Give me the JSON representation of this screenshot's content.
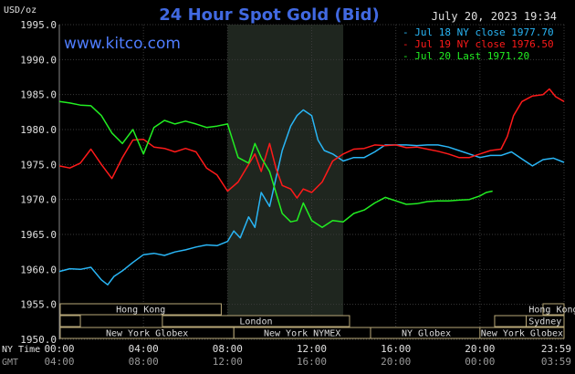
{
  "chart_data": {
    "type": "line",
    "title": "24 Hour Spot Gold (Bid)",
    "ylabel": "USD/oz",
    "timestamp": "July 20, 2023 19:34",
    "watermark": "www.kitco.com",
    "ylim": [
      1950,
      1995
    ],
    "yticks": [
      "1995.0",
      "1990.0",
      "1985.0",
      "1980.0",
      "1975.0",
      "1970.0",
      "1965.0",
      "1960.0",
      "1955.0",
      "1950.0"
    ],
    "ytick_values": [
      1995,
      1990,
      1985,
      1980,
      1975,
      1970,
      1965,
      1960,
      1955,
      1950
    ],
    "xlim": [
      0,
      24
    ],
    "ny_time_label": "NY Time",
    "gmt_label": "GMT",
    "xticks_ny": [
      "00:00",
      "04:00",
      "08:00",
      "12:00",
      "16:00",
      "20:00",
      "23:59"
    ],
    "xticks_gmt": [
      "04:00",
      "08:00",
      "12:00",
      "16:00",
      "20:00",
      "00:00",
      "03:59"
    ],
    "xtick_hours": [
      0,
      4,
      8,
      12,
      16,
      20,
      24
    ],
    "shade_hours": [
      8,
      13.5
    ],
    "legend_position": "top-right",
    "series": [
      {
        "name": "Jul 18 NY close 1977.70",
        "color": "#29b6f6",
        "x": [
          0,
          0.5,
          1,
          1.5,
          2,
          2.3,
          2.6,
          3,
          3.5,
          4,
          4.5,
          5,
          5.5,
          6,
          6.5,
          7,
          7.5,
          8,
          8.3,
          8.6,
          9,
          9.3,
          9.6,
          10,
          10.3,
          10.6,
          11,
          11.3,
          11.6,
          12,
          12.3,
          12.6,
          13,
          13.5,
          14,
          14.5,
          15,
          15.5,
          16,
          16.5,
          17,
          17.5,
          18,
          18.5,
          19,
          19.5,
          20,
          20.5,
          21,
          21.5,
          22,
          22.5,
          23,
          23.5,
          24
        ],
        "values": [
          1959.7,
          1960.1,
          1960.0,
          1960.3,
          1958.5,
          1957.8,
          1959.0,
          1959.8,
          1961.0,
          1962.1,
          1962.3,
          1962.0,
          1962.5,
          1962.8,
          1963.2,
          1963.5,
          1963.4,
          1964.0,
          1965.5,
          1964.5,
          1967.5,
          1966.0,
          1971.0,
          1969.0,
          1973.0,
          1977.0,
          1980.5,
          1982.0,
          1982.8,
          1982.0,
          1978.5,
          1977.0,
          1976.5,
          1975.5,
          1976.0,
          1976.0,
          1976.8,
          1977.8,
          1977.8,
          1977.8,
          1977.7,
          1977.8,
          1977.8,
          1977.5,
          1977.0,
          1976.5,
          1976.0,
          1976.3,
          1976.3,
          1976.8,
          1975.8,
          1974.8,
          1975.7,
          1975.9,
          1975.3
        ]
      },
      {
        "name": "Jul 19 NY close 1976.50",
        "color": "#ff1a1a",
        "x": [
          0,
          0.5,
          1,
          1.5,
          2,
          2.5,
          3,
          3.5,
          4,
          4.5,
          5,
          5.5,
          6,
          6.5,
          7,
          7.5,
          8,
          8.5,
          9,
          9.3,
          9.6,
          10,
          10.3,
          10.6,
          11,
          11.3,
          11.6,
          12,
          12.5,
          13,
          13.5,
          14,
          14.5,
          15,
          15.5,
          16,
          16.5,
          17,
          17.5,
          18,
          18.5,
          19,
          19.5,
          20,
          20.5,
          21,
          21.3,
          21.6,
          22,
          22.5,
          23,
          23.3,
          23.6,
          24
        ],
        "values": [
          1974.8,
          1974.5,
          1975.2,
          1977.2,
          1975.0,
          1973.0,
          1976.0,
          1978.5,
          1978.6,
          1977.5,
          1977.3,
          1976.8,
          1977.3,
          1976.8,
          1974.5,
          1973.5,
          1971.2,
          1972.5,
          1975.0,
          1976.5,
          1974.0,
          1978.0,
          1974.5,
          1972.0,
          1971.5,
          1970.2,
          1971.5,
          1971.0,
          1972.5,
          1975.5,
          1976.5,
          1977.2,
          1977.3,
          1977.8,
          1977.7,
          1977.8,
          1977.4,
          1977.5,
          1977.2,
          1976.9,
          1976.5,
          1976.0,
          1976.0,
          1976.5,
          1977.0,
          1977.2,
          1979.0,
          1982.0,
          1984.0,
          1984.8,
          1985.0,
          1985.8,
          1984.7,
          1984.0
        ]
      },
      {
        "name": "Jul 20 Last 1971.20",
        "color": "#22ee22",
        "x": [
          0,
          0.5,
          1,
          1.5,
          2,
          2.5,
          3,
          3.5,
          4,
          4.5,
          5,
          5.5,
          6,
          6.5,
          7,
          7.5,
          8,
          8.5,
          9,
          9.3,
          9.6,
          10,
          10.3,
          10.6,
          11,
          11.3,
          11.6,
          12,
          12.5,
          13,
          13.5,
          14,
          14.5,
          15,
          15.5,
          16,
          16.5,
          17,
          17.5,
          18,
          18.5,
          19,
          19.5,
          20,
          20.3,
          20.6
        ],
        "values": [
          1984.0,
          1983.8,
          1983.5,
          1983.4,
          1982.0,
          1979.5,
          1978.0,
          1980.0,
          1976.5,
          1980.3,
          1981.3,
          1980.8,
          1981.2,
          1980.8,
          1980.3,
          1980.5,
          1980.8,
          1976.0,
          1975.2,
          1978.0,
          1976.0,
          1974.0,
          1971.0,
          1968.0,
          1966.8,
          1967.0,
          1969.5,
          1967.0,
          1966.0,
          1967.0,
          1966.8,
          1968.0,
          1968.5,
          1969.5,
          1970.3,
          1969.8,
          1969.3,
          1969.4,
          1969.7,
          1969.8,
          1969.8,
          1969.9,
          1970.0,
          1970.5,
          1971.0,
          1971.2
        ]
      }
    ]
  },
  "sessions": [
    {
      "label": "Hong Kong",
      "row": 0,
      "start": -0.2,
      "end": 7.7
    },
    {
      "label": "London",
      "row": 1,
      "start": 4.9,
      "end": 13.8
    },
    {
      "label": "New York Globex",
      "row": 2,
      "start": -0.2,
      "end": 8.3
    },
    {
      "label": "New York NYMEX",
      "row": 2,
      "start": 8.3,
      "end": 14.8
    },
    {
      "label": "NY Globex",
      "row": 2,
      "start": 14.8,
      "end": 20.1
    },
    {
      "label": "Hong Kong",
      "row": 0,
      "start": 23.0,
      "end": 27.0
    },
    {
      "label": "Sydney",
      "row": 1,
      "start": 22.2,
      "end": 27.0
    },
    {
      "label": "New York Globex",
      "row": 2,
      "start": 20.0,
      "end": 27.0
    }
  ],
  "session_left_stubs": [
    {
      "row": 1,
      "start": -0.2,
      "end": 1.0
    }
  ],
  "session_right_stubs": [
    {
      "row": 1,
      "start": 20.7,
      "end": 22.2
    }
  ]
}
